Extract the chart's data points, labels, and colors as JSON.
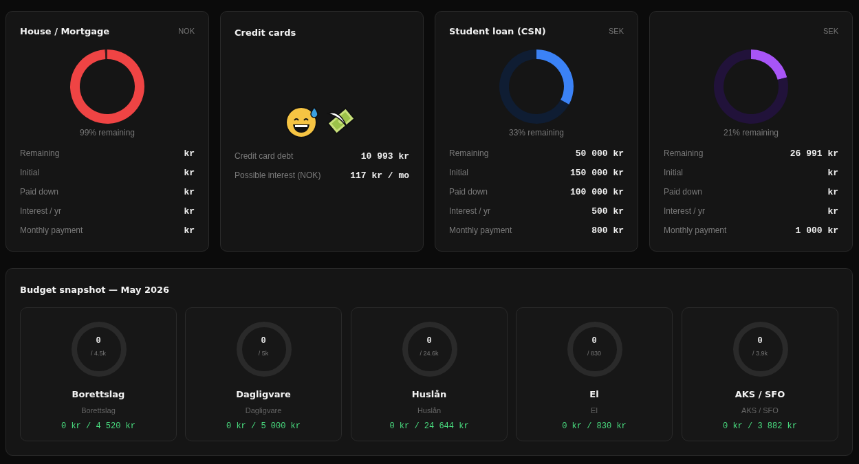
{
  "chart_data": [
    {
      "type": "donut",
      "title": "House / Mortgage",
      "categories": [
        null,
        null
      ],
      "values": [
        99,
        1
      ],
      "colors": [
        "#ef4444",
        "#3a1c1c"
      ],
      "annotations": [
        "NOK",
        "99% remaining",
        "Remaining",
        "kr",
        "Initial",
        "kr",
        "Paid down",
        "kr",
        "Interest / yr",
        "kr",
        "Monthly payment",
        "kr"
      ]
    },
    {
      "type": "other",
      "title": "Credit cards",
      "annotations": [
        "Credit card debt",
        "10 993 kr",
        "Possible interest (NOK)",
        "117 kr / mo"
      ]
    },
    {
      "type": "donut",
      "title": "Student loan (CSN)",
      "categories": [
        null,
        null
      ],
      "values": [
        33,
        67
      ],
      "colors": [
        "#3b82f6",
        "#0f1d33"
      ],
      "annotations": [
        "SEK",
        "33% remaining",
        "Remaining",
        "50 000 kr",
        "Initial",
        "150 000 kr",
        "Paid down",
        "100 000 kr",
        "Interest / yr",
        "500 kr",
        "Monthly payment",
        "800 kr"
      ]
    },
    {
      "type": "donut",
      "categories": [
        null,
        null
      ],
      "values": [
        21,
        79
      ],
      "colors": [
        "#a855f7",
        "#21123a"
      ],
      "annotations": [
        "SEK",
        "21% remaining",
        "Remaining",
        "26 991 kr",
        "Initial",
        "kr",
        "Paid down",
        "kr",
        "Interest / yr",
        "kr",
        "Monthly payment",
        "1 000 kr"
      ]
    },
    {
      "type": "other",
      "title": "Budget snapshot — May 2026"
    },
    {
      "type": "other",
      "title": "Borettslag",
      "subtitle": "Borettslag",
      "annotations": [
        "0",
        "/ 4.5k",
        "0 kr / 4 520 kr"
      ]
    },
    {
      "type": "other",
      "title": "Dagligvare",
      "subtitle": "Dagligvare",
      "annotations": [
        "0",
        "/ 5k",
        "0 kr / 5 000 kr"
      ]
    },
    {
      "type": "other",
      "title": "Huslån",
      "subtitle": "Huslån",
      "annotations": [
        "0",
        "/ 24.6k",
        "0 kr / 24 644 kr"
      ]
    },
    {
      "type": "other",
      "title": "El",
      "subtitle": "El",
      "annotations": [
        "0",
        "/ 830",
        "0 kr / 830 kr"
      ]
    },
    {
      "type": "other",
      "title": "AKS / SFO",
      "subtitle": "AKS / SFO",
      "annotations": [
        "0",
        "/ 3.9k",
        "0 kr / 3 882 kr"
      ]
    }
  ]
}
